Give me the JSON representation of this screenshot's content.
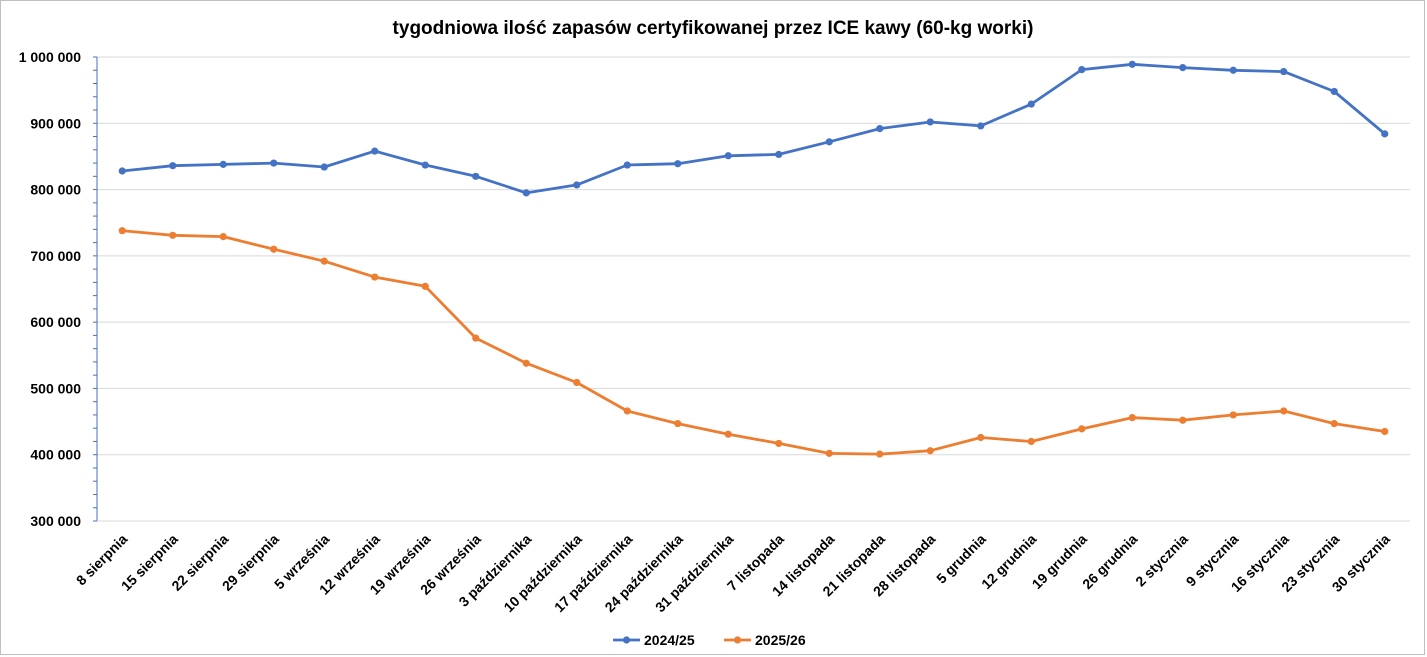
{
  "chart_data": {
    "type": "line",
    "title": "tygodniowa ilość zapasów certyfikowanej przez ICE kawy (60-kg worki)",
    "xlabel": "",
    "ylabel": "",
    "ylim": [
      300000,
      1000000
    ],
    "yticks": [
      300000,
      400000,
      500000,
      600000,
      700000,
      800000,
      900000,
      1000000
    ],
    "ytick_labels": [
      "300 000",
      "400 000",
      "500 000",
      "600 000",
      "700 000",
      "800 000",
      "900 000",
      "1 000 000"
    ],
    "grid": true,
    "legend_position": "bottom",
    "categories": [
      "8 sierpnia",
      "15 sierpnia",
      "22 sierpnia",
      "29 sierpnia",
      "5 września",
      "12 września",
      "19 września",
      "26 września",
      "3 października",
      "10 października",
      "17 października",
      "24 października",
      "31 października",
      "7 listopada",
      "14 listopada",
      "21 listopada",
      "28 listopada",
      "5 grudnia",
      "12 grudnia",
      "19 grudnia",
      "26 grudnia",
      "2 stycznia",
      "9 stycznia",
      "16 stycznia",
      "23 stycznia",
      "30 stycznia"
    ],
    "series": [
      {
        "name": "2024/25",
        "color": "#4472c4",
        "values": [
          828000,
          836000,
          838000,
          840000,
          834000,
          858000,
          837000,
          820000,
          795000,
          807000,
          837000,
          839000,
          851000,
          853000,
          872000,
          892000,
          902000,
          896000,
          929000,
          981000,
          989000,
          984000,
          980000,
          978000,
          948000,
          884000
        ]
      },
      {
        "name": "2025/26",
        "color": "#ed7d31",
        "values": [
          738000,
          731000,
          729000,
          710000,
          692000,
          668000,
          654000,
          576000,
          538000,
          509000,
          466000,
          447000,
          431000,
          417000,
          402000,
          401000,
          406000,
          426000,
          420000,
          439000,
          456000,
          452000,
          460000,
          466000,
          447000,
          435000
        ]
      }
    ]
  }
}
